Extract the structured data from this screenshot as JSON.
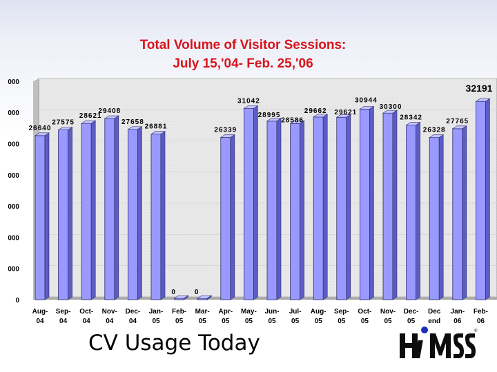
{
  "slide": {
    "caption": "CV Usage Today",
    "logo_name": "himss-logo",
    "logo_text": "HiMSS"
  },
  "chart_data": {
    "type": "bar",
    "title_lines": [
      "Total Volume of Visitor Sessions:",
      "July 15,'04- Feb. 25,'06"
    ],
    "categories": [
      [
        "Aug-",
        "04"
      ],
      [
        "Sep-",
        "04"
      ],
      [
        "Oct-",
        "04"
      ],
      [
        "Nov-",
        "04"
      ],
      [
        "Dec-",
        "04"
      ],
      [
        "Jan-",
        "05"
      ],
      [
        "Feb-",
        "05"
      ],
      [
        "Mar-",
        "05"
      ],
      [
        "Apr-",
        "05"
      ],
      [
        "May-",
        "05"
      ],
      [
        "Jun-",
        "05"
      ],
      [
        "Jul-",
        "05"
      ],
      [
        "Aug-",
        "05"
      ],
      [
        "Sep-",
        "05"
      ],
      [
        "Oct-",
        "05"
      ],
      [
        "Nov-",
        "05"
      ],
      [
        "Dec-",
        "05"
      ],
      [
        "Dec",
        "end"
      ],
      [
        "Jan-",
        "06"
      ],
      [
        "Feb-",
        "06"
      ]
    ],
    "values": [
      26640,
      27575,
      28621,
      29408,
      27658,
      26881,
      0,
      0,
      26339,
      31042,
      28995,
      28586,
      29662,
      29621,
      30944,
      30300,
      28342,
      26328,
      27765,
      32191
    ],
    "y_tick_labels": [
      "0",
      "000",
      "000",
      "000",
      "000",
      "000",
      "000",
      "000"
    ],
    "ylim_note": "axis labels partially cropped in source",
    "colors": {
      "bar_front": "#9999ff",
      "bar_side": "#5c5cc4",
      "bar_top": "#c4c4ff",
      "title": "#d8141c",
      "plot_wall": "#e9e9e9"
    }
  }
}
